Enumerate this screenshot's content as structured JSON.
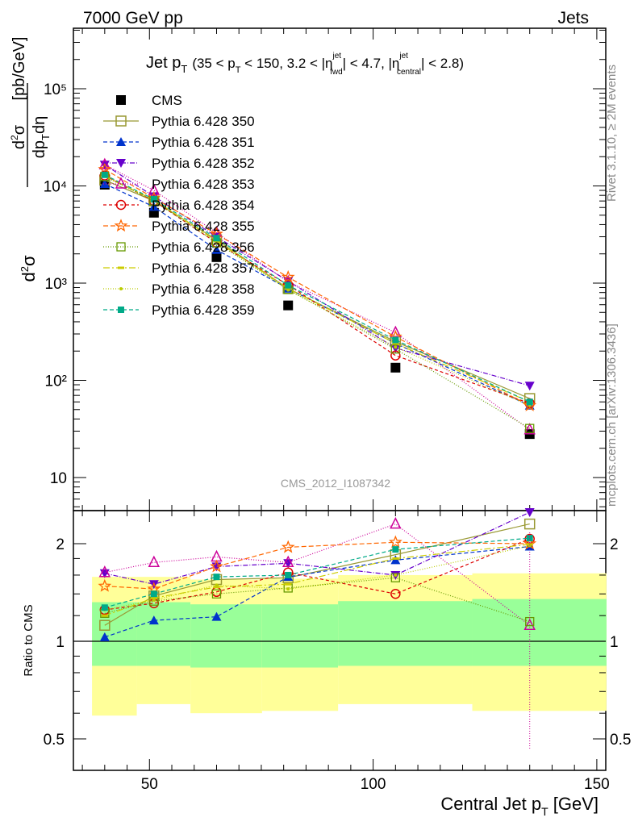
{
  "header": {
    "left": "7000 GeV pp",
    "right": "Jets"
  },
  "title": {
    "main": "Jet p",
    "main_sub": "T",
    "cond": "(35 < p",
    "cond_sub1": "T",
    "cond2": " < 150, 3.2 < |η",
    "cond_sup1": "jet",
    "cond_sub2": "fwd",
    "cond3": "| < 4.7, |η",
    "cond_sup2": "jet",
    "cond_sub3": "central",
    "cond4": "| < 2.8)"
  },
  "analysis_id": "CMS_2012_I1087342",
  "side_text": {
    "rivet": "Rivet 3.1.10, ≥ 2M events",
    "mcplots": "mcplots.cern.ch [arXiv:1306.3436]"
  },
  "axes": {
    "xlabel_main": "Central Jet p",
    "xlabel_sub": "T",
    "xlabel_unit": " [GeV]",
    "ylabel_top": "d²σ/dp_T dη [pb/GeV]",
    "ylabel_bottom": "Ratio to CMS",
    "top_ticks": [
      "10",
      "10²",
      "10³",
      "10⁴",
      "10⁵"
    ],
    "x_ticks": [
      "50",
      "100",
      "150"
    ],
    "ratio_ticks": [
      "0.5",
      "1",
      "2"
    ]
  },
  "chart_data": [
    {
      "type": "scatter",
      "panel": "main",
      "xlim": [
        33,
        152
      ],
      "ylim": [
        5,
        400000
      ],
      "yscale": "log",
      "x": [
        40,
        51,
        65,
        81,
        105,
        135
      ],
      "series": [
        {
          "name": "CMS",
          "color": "#000000",
          "marker": "square-filled",
          "values": [
            10300,
            5300,
            1850,
            590,
            135,
            28
          ]
        },
        {
          "name": "Pythia 6.428 350",
          "color": "#999933",
          "marker": "square-open",
          "dash": "none",
          "values": [
            11500,
            7000,
            2800,
            880,
            250,
            65
          ]
        },
        {
          "name": "Pythia 6.428 351",
          "color": "#0033cc",
          "marker": "triangle-up",
          "dash": "5,3",
          "values": [
            10500,
            6100,
            2200,
            880,
            240,
            55
          ]
        },
        {
          "name": "Pythia 6.428 352",
          "color": "#6600cc",
          "marker": "triangle-down",
          "dash": "6,2,1,2",
          "values": [
            16500,
            7800,
            3000,
            1050,
            215,
            88
          ]
        },
        {
          "name": "Pythia 6.428 353",
          "color": "#cc0099",
          "marker": "triangle-open",
          "dash": "1,2",
          "values": [
            16500,
            9000,
            3300,
            1030,
            310,
            31
          ]
        },
        {
          "name": "Pythia 6.428 354",
          "color": "#dd0000",
          "marker": "circle-open",
          "dash": "4,3",
          "values": [
            12800,
            7000,
            2600,
            960,
            180,
            58
          ]
        },
        {
          "name": "Pythia 6.428 355",
          "color": "#ff6600",
          "marker": "star",
          "dash": "6,3",
          "values": [
            14800,
            7500,
            3200,
            1150,
            280,
            55
          ]
        },
        {
          "name": "Pythia 6.428 356",
          "color": "#669900",
          "marker": "square-open-small",
          "dash": "1,2",
          "values": [
            12500,
            7000,
            2600,
            860,
            210,
            32
          ]
        },
        {
          "name": "Pythia 6.428 357",
          "color": "#cccc00",
          "marker": "dash-dot",
          "dash": "8,3,2,3",
          "values": [
            12500,
            7200,
            2700,
            880,
            240,
            60
          ]
        },
        {
          "name": "Pythia 6.428 358",
          "color": "#bbcc00",
          "marker": "dot",
          "dash": "1,2",
          "values": [
            12800,
            7100,
            2750,
            850,
            220,
            55
          ]
        },
        {
          "name": "Pythia 6.428 359",
          "color": "#00aa88",
          "marker": "square-filled-small",
          "dash": "5,3",
          "values": [
            13000,
            7300,
            2900,
            950,
            260,
            60
          ]
        }
      ]
    },
    {
      "type": "line",
      "panel": "ratio",
      "ylabel": "Ratio to CMS",
      "ylim": [
        0.4,
        2.4
      ],
      "yscale": "log",
      "x": [
        40,
        51,
        65,
        81,
        105,
        135
      ],
      "bands": {
        "edges": [
          35,
          45,
          57,
          73,
          90,
          120,
          150
        ],
        "green_lo": [
          0.84,
          0.84,
          0.83,
          0.83,
          0.84,
          0.84
        ],
        "green_hi": [
          1.32,
          1.32,
          1.3,
          1.3,
          1.33,
          1.35
        ],
        "yellow_lo": [
          0.59,
          0.64,
          0.6,
          0.61,
          0.64,
          0.61
        ],
        "yellow_hi": [
          1.58,
          1.58,
          1.55,
          1.56,
          1.6,
          1.62
        ]
      },
      "series": [
        {
          "name": "Pythia 6.428 350",
          "values": [
            1.12,
            1.38,
            1.55,
            1.57,
            1.85,
            2.3
          ]
        },
        {
          "name": "Pythia 6.428 351",
          "values": [
            1.03,
            1.16,
            1.19,
            1.58,
            1.78,
            1.96
          ]
        },
        {
          "name": "Pythia 6.428 352",
          "values": [
            1.62,
            1.5,
            1.7,
            1.74,
            1.6,
            2.5
          ]
        },
        {
          "name": "Pythia 6.428 353",
          "values": [
            1.63,
            1.75,
            1.82,
            1.75,
            2.3,
            1.12
          ]
        },
        {
          "name": "Pythia 6.428 354",
          "values": [
            1.25,
            1.31,
            1.42,
            1.63,
            1.4,
            2.07
          ]
        },
        {
          "name": "Pythia 6.428 355",
          "values": [
            1.48,
            1.45,
            1.7,
            1.95,
            2.02,
            2.0
          ]
        },
        {
          "name": "Pythia 6.428 356",
          "values": [
            1.22,
            1.33,
            1.4,
            1.46,
            1.57,
            1.15
          ]
        },
        {
          "name": "Pythia 6.428 357",
          "values": [
            1.2,
            1.36,
            1.47,
            1.5,
            1.8,
            1.99
          ]
        },
        {
          "name": "Pythia 6.428 358",
          "values": [
            1.25,
            1.34,
            1.49,
            1.45,
            1.6,
            1.97
          ]
        },
        {
          "name": "Pythia 6.428 359",
          "values": [
            1.27,
            1.4,
            1.58,
            1.6,
            1.92,
            2.08
          ]
        }
      ]
    }
  ]
}
